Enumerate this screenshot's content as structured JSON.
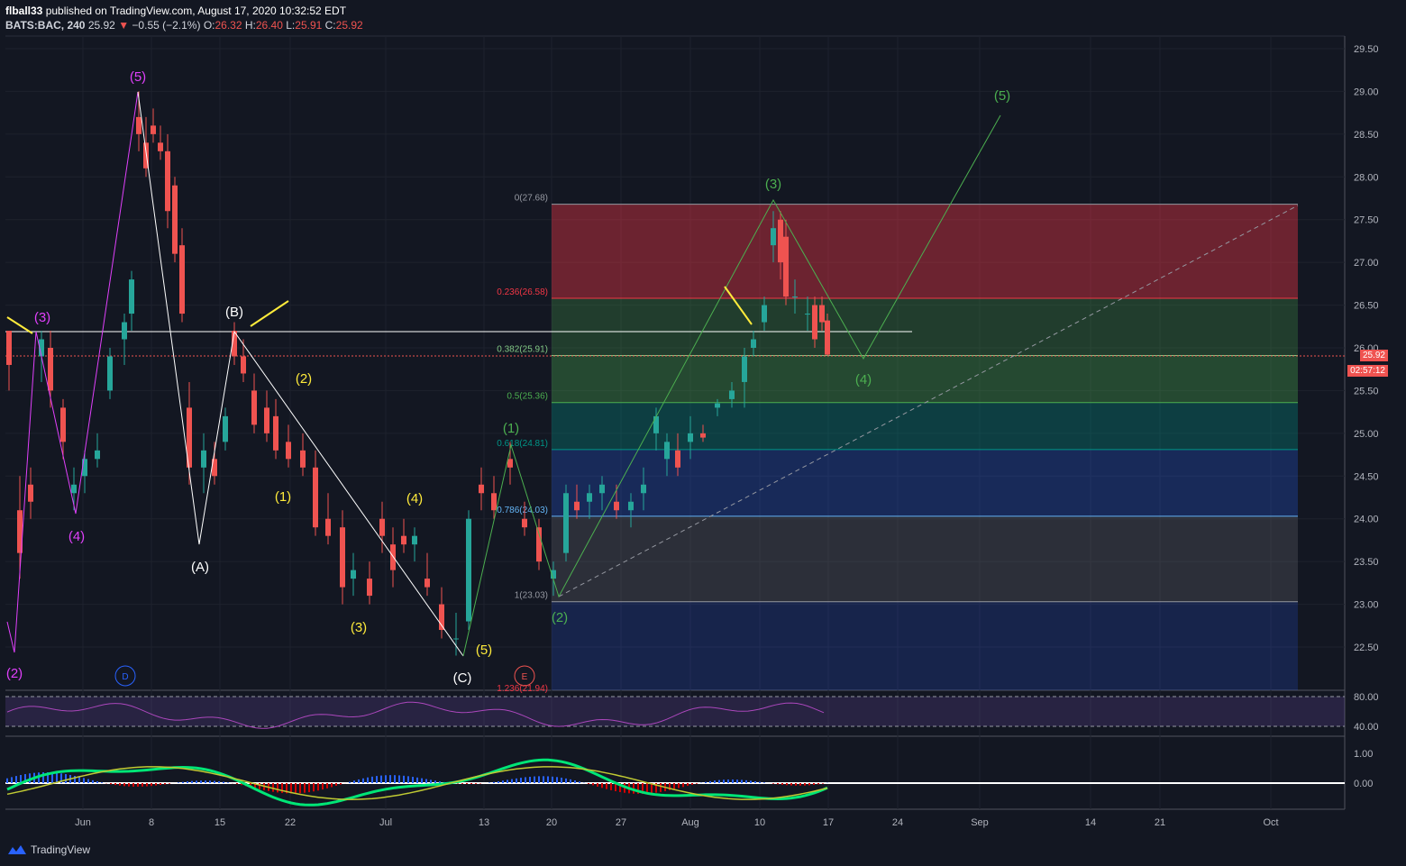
{
  "header": {
    "line1_user": "flball33",
    "line1_rest": "published on TradingView.com, August 17, 2020 10:32:52 EDT",
    "symbol": "BATS:BAC, 240",
    "last": "25.92",
    "change": "−0.55 (−2.1%)",
    "o_label": "O:",
    "o": "26.32",
    "h_label": "H:",
    "h": "26.40",
    "l_label": "L:",
    "l": "25.91",
    "c_label": "C:",
    "c": "25.92"
  },
  "price_tags": {
    "last": "25.92",
    "countdown": "02:57:12"
  },
  "footer": {
    "brand": "TradingView"
  },
  "colors": {
    "bg": "#131722",
    "up": "#26a69a",
    "down": "#ef5350",
    "magenta": "#e040fb",
    "yellow": "#ffeb3b",
    "white": "#ffffff",
    "green": "#4caf50"
  },
  "chart_data": {
    "type": "candlestick",
    "symbol": "BATS:BAC",
    "interval": "240",
    "y_ticks": [
      "29.50",
      "29.00",
      "28.50",
      "28.00",
      "27.50",
      "27.00",
      "26.50",
      "26.00",
      "25.50",
      "25.00",
      "24.50",
      "24.00",
      "23.50",
      "23.00",
      "22.50"
    ],
    "ylim": [
      22.0,
      29.7
    ],
    "x_ticks": [
      "Jun",
      "8",
      "15",
      "22",
      "Jul",
      "13",
      "20",
      "27",
      "Aug",
      "10",
      "17",
      "24",
      "Sep",
      "14",
      "21",
      "Oct"
    ],
    "fib_levels": [
      {
        "label": "0(27.68)",
        "value": 27.68
      },
      {
        "label": "0.236(26.58)",
        "value": 26.58
      },
      {
        "label": "0.382(25.91)",
        "value": 25.91
      },
      {
        "label": "0.5(25.36)",
        "value": 25.36
      },
      {
        "label": "0.618(24.81)",
        "value": 24.81
      },
      {
        "label": "0.786(24.03)",
        "value": 24.03
      },
      {
        "label": "1(23.03)",
        "value": 23.03
      },
      {
        "label": "1.236(21.94)",
        "value": 21.94
      }
    ],
    "wave_labels": [
      {
        "text": "(5)",
        "color": "magenta"
      },
      {
        "text": "(3)",
        "color": "magenta"
      },
      {
        "text": "(4)",
        "color": "magenta"
      },
      {
        "text": "(2)",
        "color": "magenta"
      },
      {
        "text": "(B)",
        "color": "white"
      },
      {
        "text": "(A)",
        "color": "white"
      },
      {
        "text": "(C)",
        "color": "white"
      },
      {
        "text": "(2)",
        "color": "yellow"
      },
      {
        "text": "(1)",
        "color": "yellow"
      },
      {
        "text": "(4)",
        "color": "yellow"
      },
      {
        "text": "(3)",
        "color": "yellow"
      },
      {
        "text": "(5)",
        "color": "yellow"
      },
      {
        "text": "(1)",
        "color": "green"
      },
      {
        "text": "(2)",
        "color": "green"
      },
      {
        "text": "(3)",
        "color": "green"
      },
      {
        "text": "(4)",
        "color": "green"
      },
      {
        "text": "(5)",
        "color": "green"
      }
    ],
    "event_markers": [
      "D",
      "E"
    ],
    "rsi": {
      "ticks": [
        "80.00",
        "40.00"
      ],
      "range": [
        20,
        90
      ]
    },
    "macd": {
      "ticks": [
        "1.00",
        "0.00"
      ]
    }
  }
}
